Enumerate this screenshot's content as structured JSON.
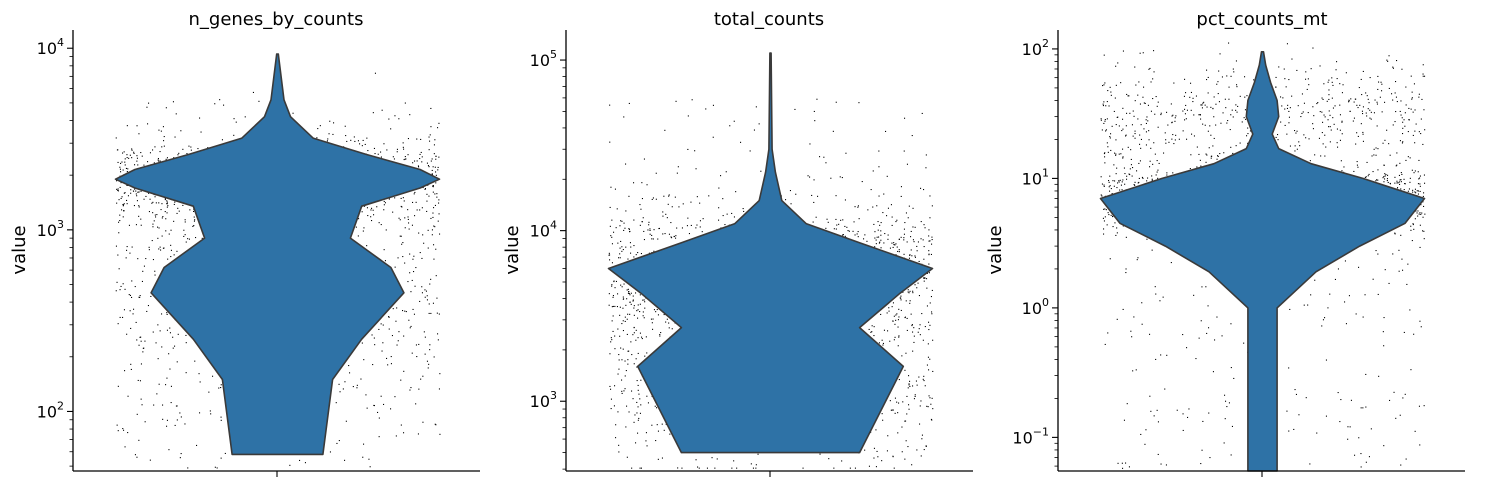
{
  "chart_data": [
    {
      "type": "violin",
      "title": "n_genes_by_counts",
      "ylabel": "value",
      "yscale": "log",
      "ylim": [
        47,
        12600
      ],
      "yticks": [
        {
          "base": "10",
          "exp": "2",
          "value": 100
        },
        {
          "base": "10",
          "exp": "3",
          "value": 1000
        },
        {
          "base": "10",
          "exp": "4",
          "value": 10000
        }
      ],
      "violin_color": "#2e72a6",
      "jitter_color": "#000000",
      "density_profile": [
        {
          "value": 58,
          "half_width": 0.28
        },
        {
          "value": 150,
          "half_width": 0.34
        },
        {
          "value": 250,
          "half_width": 0.52
        },
        {
          "value": 450,
          "half_width": 0.78
        },
        {
          "value": 620,
          "half_width": 0.7
        },
        {
          "value": 900,
          "half_width": 0.45
        },
        {
          "value": 1350,
          "half_width": 0.52
        },
        {
          "value": 1700,
          "half_width": 0.88
        },
        {
          "value": 1900,
          "half_width": 1.0
        },
        {
          "value": 2150,
          "half_width": 0.88
        },
        {
          "value": 2600,
          "half_width": 0.55
        },
        {
          "value": 3200,
          "half_width": 0.22
        },
        {
          "value": 4200,
          "half_width": 0.08
        },
        {
          "value": 5200,
          "half_width": 0.04
        },
        {
          "value": 9300,
          "half_width": 0.005
        }
      ],
      "points": {
        "n": 2000,
        "center": 1900,
        "spread": 0.12,
        "low_fraction": 0.35,
        "low_center": 480,
        "low_spread": 0.35,
        "seed": 7
      }
    },
    {
      "type": "violin",
      "title": "total_counts",
      "ylabel": "value",
      "yscale": "log",
      "ylim": [
        390,
        150000
      ],
      "yticks": [
        {
          "base": "10",
          "exp": "3",
          "value": 1000
        },
        {
          "base": "10",
          "exp": "4",
          "value": 10000
        },
        {
          "base": "10",
          "exp": "5",
          "value": 100000
        }
      ],
      "violin_color": "#2e72a6",
      "jitter_color": "#000000",
      "density_profile": [
        {
          "value": 500,
          "half_width": 0.55
        },
        {
          "value": 1600,
          "half_width": 0.82
        },
        {
          "value": 2700,
          "half_width": 0.55
        },
        {
          "value": 4300,
          "half_width": 0.8
        },
        {
          "value": 6000,
          "half_width": 1.0
        },
        {
          "value": 8500,
          "half_width": 0.55
        },
        {
          "value": 11000,
          "half_width": 0.22
        },
        {
          "value": 15000,
          "half_width": 0.07
        },
        {
          "value": 22000,
          "half_width": 0.03
        },
        {
          "value": 30000,
          "half_width": 0.01
        },
        {
          "value": 110000,
          "half_width": 0.004
        }
      ],
      "points": {
        "n": 2000,
        "center": 6000,
        "spread": 0.2,
        "low_fraction": 0.35,
        "low_center": 1500,
        "low_spread": 0.3,
        "seed": 11
      }
    },
    {
      "type": "violin",
      "title": "pct_counts_mt",
      "ylabel": "value",
      "yscale": "log",
      "ylim": [
        0.055,
        140
      ],
      "yticks": [
        {
          "base": "10",
          "exp": "−1",
          "value": 0.1
        },
        {
          "base": "10",
          "exp": "0",
          "value": 1
        },
        {
          "base": "10",
          "exp": "1",
          "value": 10
        },
        {
          "base": "10",
          "exp": "2",
          "value": 100
        }
      ],
      "violin_color": "#2e72a6",
      "jitter_color": "#000000",
      "density_profile": [
        {
          "value": 0.055,
          "half_width": 0.09
        },
        {
          "value": 1.0,
          "half_width": 0.09
        },
        {
          "value": 1.9,
          "half_width": 0.33
        },
        {
          "value": 3.0,
          "half_width": 0.6
        },
        {
          "value": 4.5,
          "half_width": 0.88
        },
        {
          "value": 7.0,
          "half_width": 1.0
        },
        {
          "value": 10,
          "half_width": 0.62
        },
        {
          "value": 13,
          "half_width": 0.3
        },
        {
          "value": 17,
          "half_width": 0.1
        },
        {
          "value": 22,
          "half_width": 0.06
        },
        {
          "value": 30,
          "half_width": 0.1
        },
        {
          "value": 40,
          "half_width": 0.09
        },
        {
          "value": 55,
          "half_width": 0.05
        },
        {
          "value": 75,
          "half_width": 0.02
        },
        {
          "value": 95,
          "half_width": 0.006
        }
      ],
      "points": {
        "n": 2000,
        "center": 7,
        "spread": 0.14,
        "low_fraction": 0.28,
        "low_center": 32,
        "low_spread": 0.2,
        "seed": 23
      }
    }
  ]
}
